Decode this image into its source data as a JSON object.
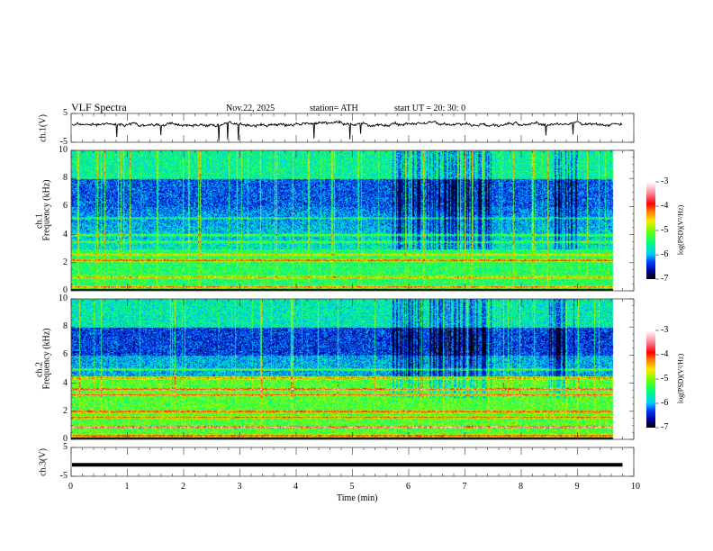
{
  "header": {
    "title": "VLF  Spectra",
    "date": "Nov.22, 2025",
    "station": "station= ATH",
    "start": "start  UT  =    20: 30: 0"
  },
  "chart_data": [
    {
      "type": "line",
      "name": "ch1",
      "ylabel": "ch.1(V)",
      "ylim": [
        -5,
        5
      ],
      "yticks": [
        "5",
        "-5"
      ],
      "xlim": [
        0,
        10
      ],
      "x_end": 9.8,
      "mean_value": 1.2,
      "note": "noisy waveform with spikes"
    },
    {
      "type": "heatmap",
      "name": "ch1-spectrogram",
      "ylabel": "ch.1\nFrequency  (kHz)",
      "ylabel_top": "ch.1",
      "ylabel_main": "Frequency  (kHz)",
      "ylim": [
        0,
        10
      ],
      "yticks": [
        "0",
        "2",
        "4",
        "6",
        "8",
        "10"
      ],
      "xlim": [
        0,
        10
      ],
      "x_end": 9.8,
      "colorbar": {
        "label": "log(PSD)(V²/Hz)",
        "range": [
          -7,
          -3
        ],
        "ticks": [
          "-3",
          "-4",
          "-5",
          "-6",
          "-7"
        ]
      }
    },
    {
      "type": "heatmap",
      "name": "ch2-spectrogram",
      "ylabel_top": "ch.2",
      "ylabel_main": "Frequency  (kHz)",
      "ylim": [
        0,
        10
      ],
      "yticks": [
        "0",
        "2",
        "4",
        "6",
        "8",
        "10"
      ],
      "xlim": [
        0,
        10
      ],
      "x_end": 9.8,
      "colorbar": {
        "label": "log(PSD)(V²/Hz)",
        "range": [
          -7,
          -3
        ],
        "ticks": [
          "-3",
          "-4",
          "-5",
          "-6",
          "-7"
        ]
      }
    },
    {
      "type": "line",
      "name": "ch3",
      "ylabel": "ch.3(V)",
      "ylim": [
        -5,
        5
      ],
      "yticks": [
        "5",
        "-5"
      ],
      "xlim": [
        0,
        10
      ],
      "x_end": 9.8,
      "mean_value": -1.0,
      "note": "flat line"
    }
  ],
  "xaxis": {
    "label": "Time  (min)",
    "ticks": [
      "0",
      "1",
      "2",
      "3",
      "4",
      "5",
      "6",
      "7",
      "8",
      "9",
      "10"
    ]
  },
  "colors": {
    "line": "#000000"
  }
}
